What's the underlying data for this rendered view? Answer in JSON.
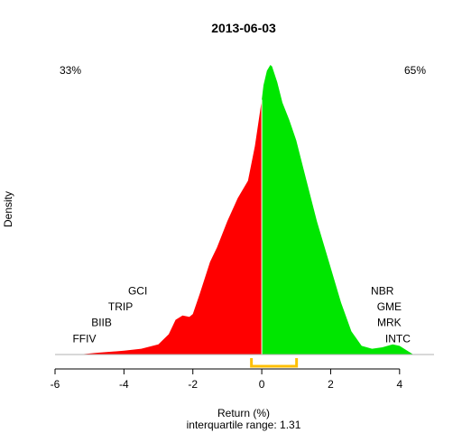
{
  "chart_data": {
    "type": "area",
    "title": "2013-06-03",
    "xlabel": "Return (%)",
    "ylabel": "Density",
    "subtitle": "interquartile range: 1.31",
    "xlim": [
      -6,
      5
    ],
    "ylim": [
      0,
      1
    ],
    "xticks": [
      -6,
      -4,
      -2,
      0,
      2,
      4
    ],
    "split_at": 0,
    "negative_share_label": "33%",
    "positive_share_label": "65%",
    "colors": {
      "negative": "#ff0000",
      "positive": "#00e600",
      "negative_text": "#ff0000",
      "positive_text": "#008000",
      "iqr": "#ffc000",
      "baseline": "#b0b0b0"
    },
    "iqr": [
      -0.3,
      1.01
    ],
    "density": {
      "x": [
        -5.3,
        -4.8,
        -4.0,
        -3.5,
        -3.0,
        -2.7,
        -2.5,
        -2.3,
        -2.1,
        -2.0,
        -1.8,
        -1.5,
        -1.3,
        -1.0,
        -0.7,
        -0.4,
        -0.2,
        0.0,
        0.05,
        0.15,
        0.25,
        0.3,
        0.45,
        0.6,
        0.8,
        1.0,
        1.3,
        1.6,
        2.0,
        2.3,
        2.6,
        2.9,
        3.2,
        3.5,
        3.8,
        4.0,
        4.2,
        4.4
      ],
      "y": [
        0.0,
        0.006,
        0.013,
        0.02,
        0.035,
        0.07,
        0.12,
        0.135,
        0.13,
        0.14,
        0.21,
        0.32,
        0.37,
        0.46,
        0.54,
        0.6,
        0.72,
        0.88,
        0.93,
        0.98,
        1.0,
        0.995,
        0.94,
        0.87,
        0.81,
        0.74,
        0.6,
        0.46,
        0.3,
        0.18,
        0.08,
        0.03,
        0.02,
        0.025,
        0.035,
        0.03,
        0.015,
        0.0
      ]
    },
    "left_tail_labels": [
      {
        "name": "FFIV",
        "x": -5.15,
        "y": 0.055
      },
      {
        "name": "BIIB",
        "x": -4.65,
        "y": 0.11
      },
      {
        "name": "TRIP",
        "x": -4.1,
        "y": 0.165
      },
      {
        "name": "GCI",
        "x": -3.6,
        "y": 0.22
      }
    ],
    "right_tail_labels": [
      {
        "name": "NBR",
        "x": 3.5,
        "y": 0.22
      },
      {
        "name": "GME",
        "x": 3.7,
        "y": 0.165
      },
      {
        "name": "MRK",
        "x": 3.7,
        "y": 0.11
      },
      {
        "name": "INTC",
        "x": 3.95,
        "y": 0.055
      }
    ]
  }
}
